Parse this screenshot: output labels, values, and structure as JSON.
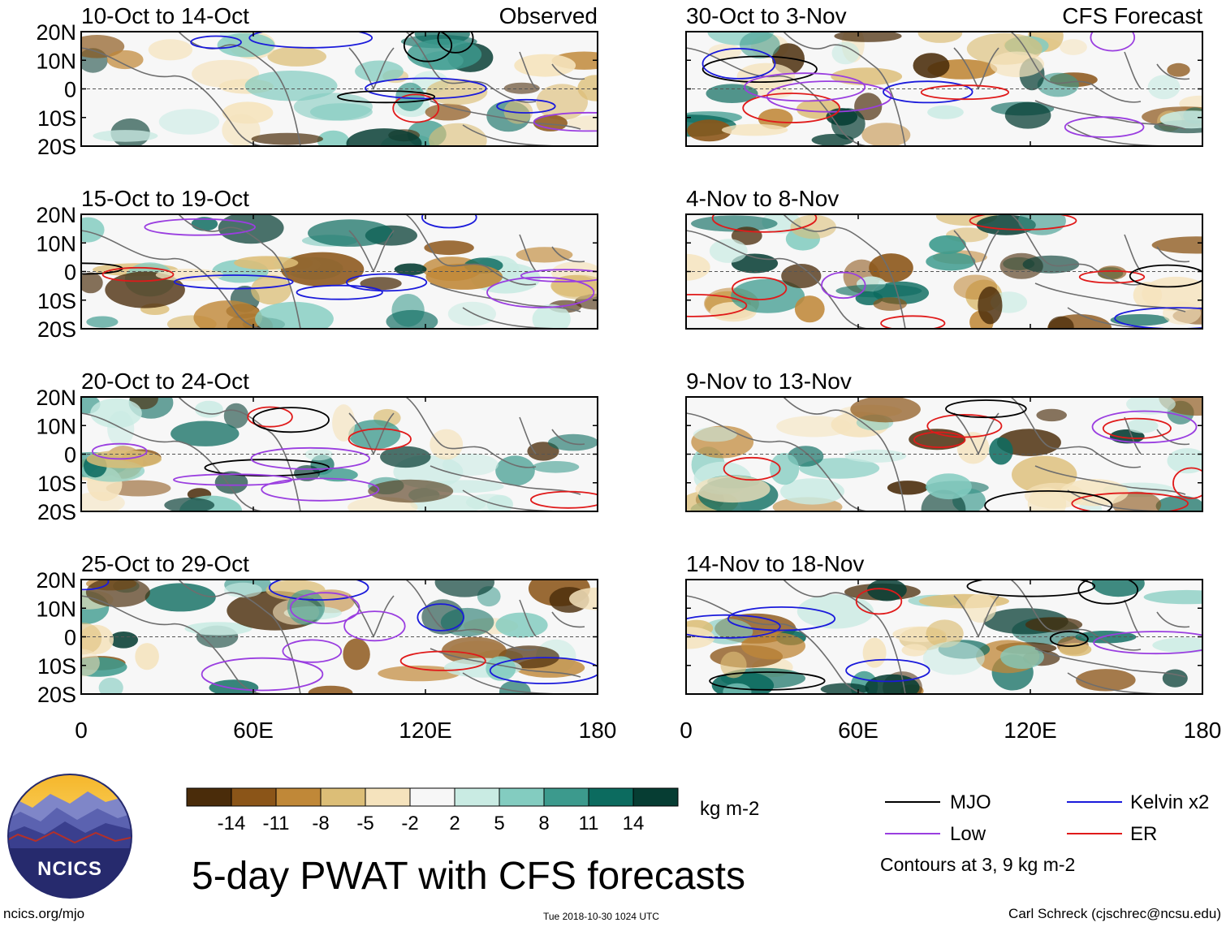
{
  "chart_data": {
    "type": "heatmap",
    "title": "5-day PWAT with CFS forecasts",
    "variable": "PWAT anomaly",
    "units": "kg m-2",
    "columns": [
      {
        "header": "Observed",
        "panels": [
          "10-Oct to 14-Oct",
          "15-Oct to 19-Oct",
          "20-Oct to 24-Oct",
          "25-Oct to 29-Oct"
        ]
      },
      {
        "header": "CFS Forecast",
        "panels": [
          "30-Oct to 3-Nov",
          "4-Nov to 8-Nov",
          "9-Nov to 13-Nov",
          "14-Nov to 18-Nov"
        ]
      }
    ],
    "y_axis": {
      "range": [
        -20,
        20
      ],
      "tick_values": [
        20,
        10,
        0,
        -10,
        -20
      ],
      "tick_labels": [
        "20N",
        "10N",
        "0",
        "10S",
        "20S"
      ]
    },
    "x_axis": {
      "range": [
        0,
        180
      ],
      "tick_values": [
        0,
        60,
        120,
        180
      ],
      "tick_labels": [
        "0",
        "60E",
        "120E",
        "180"
      ]
    },
    "colorbar": {
      "colors": [
        "#4a2c0a",
        "#8b5518",
        "#c08838",
        "#dcbe77",
        "#f5e3bd",
        "#f7f7f7",
        "#c9ebe3",
        "#83ccc0",
        "#3c9a8d",
        "#0c6b5f",
        "#063d33"
      ],
      "tick_labels": [
        "-14",
        "-11",
        "-8",
        "-5",
        "-2",
        "2",
        "5",
        "8",
        "11",
        "14"
      ],
      "units_label": "kg m-2"
    },
    "legend": {
      "items": [
        {
          "label": "MJO",
          "color": "#000000"
        },
        {
          "label": "Kelvin x2",
          "color": "#1a1adb"
        },
        {
          "label": "Low",
          "color": "#9a3ee0"
        },
        {
          "label": "ER",
          "color": "#e01a1a"
        }
      ],
      "note": "Contours at 3, 9 kg m-2"
    }
  },
  "logo": {
    "text": "NCICS"
  },
  "footer": {
    "url": "ncics.org/mjo",
    "timestamp": "Tue 2018-10-30 1024 UTC",
    "credit": "Carl Schreck (cjschrec@ncsu.edu)"
  }
}
